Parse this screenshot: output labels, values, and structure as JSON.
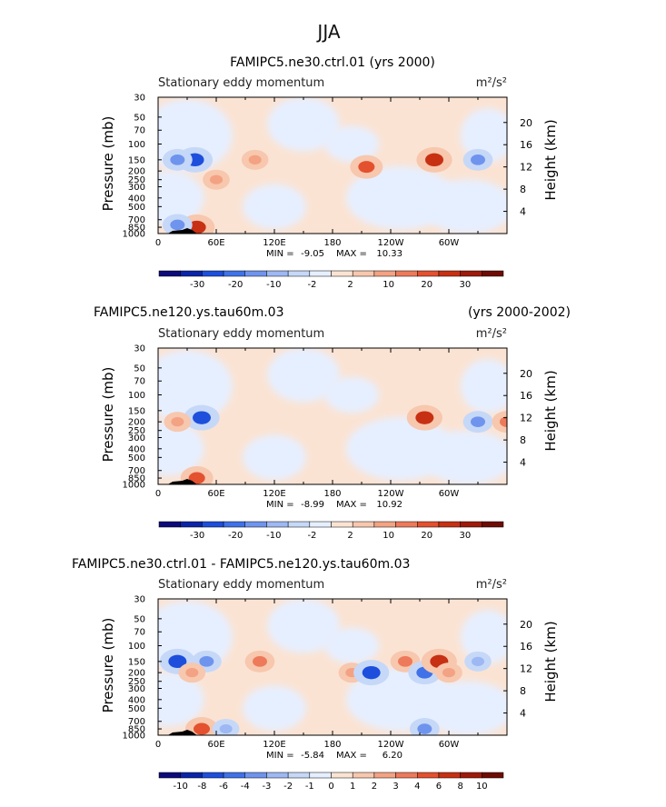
{
  "page_title": "JJA",
  "chart_data": [
    {
      "type": "heatmap",
      "title": "FAMIPC5.ne30.ctrl.01 (yrs 2000)",
      "subtitle_right": "",
      "left_label": "Stationary eddy momentum",
      "units": "m²/s²",
      "ylabel": "Pressure (mb)",
      "y2label": "Height (km)",
      "x_tick_labels": [
        "0",
        "60E",
        "120E",
        "180",
        "120W",
        "60W"
      ],
      "y_tick_labels": [
        "30",
        "50",
        "70",
        "100",
        "150",
        "200",
        "250",
        "300",
        "400",
        "500",
        "700",
        "850",
        "1000"
      ],
      "y2_tick_labels": [
        "20",
        "16",
        "12",
        "8",
        "4"
      ],
      "min_label": "MIN =",
      "min_value": "-9.05",
      "max_label": "MAX =",
      "max_value": "10.33",
      "colorbar_labels": [
        "-30",
        "-20",
        "-10",
        "-2",
        "2",
        "10",
        "20",
        "30"
      ],
      "colorbar_colors": [
        "#0d0b7a",
        "#0a24a8",
        "#1d4fdc",
        "#3f72e8",
        "#6f94ee",
        "#9db8f3",
        "#c6d8f8",
        "#e6efff",
        "#fbe3d3",
        "#f7c7ae",
        "#f3a283",
        "#ed7a5a",
        "#e3512f",
        "#c73013",
        "#9e1a0a",
        "#6e0c04"
      ],
      "blobs": [
        {
          "lon": 38,
          "p": 150,
          "v": -6
        },
        {
          "lon": 20,
          "p": 150,
          "v": -4
        },
        {
          "lon": 100,
          "p": 150,
          "v": 3
        },
        {
          "lon": 215,
          "p": 180,
          "v": 5
        },
        {
          "lon": 285,
          "p": 150,
          "v": 6
        },
        {
          "lon": 330,
          "p": 150,
          "v": -4
        },
        {
          "lon": 40,
          "p": 850,
          "v": 6
        },
        {
          "lon": 20,
          "p": 800,
          "v": -4
        },
        {
          "lon": 60,
          "p": 250,
          "v": 3
        }
      ]
    },
    {
      "type": "heatmap",
      "title": "FAMIPC5.ne120.ys.tau60m.03",
      "subtitle_right": "(yrs 2000-2002)",
      "left_label": "Stationary eddy momentum",
      "units": "m²/s²",
      "ylabel": "Pressure (mb)",
      "y2label": "Height (km)",
      "x_tick_labels": [
        "0",
        "60E",
        "120E",
        "180",
        "120W",
        "60W"
      ],
      "y_tick_labels": [
        "30",
        "50",
        "70",
        "100",
        "150",
        "200",
        "250",
        "300",
        "400",
        "500",
        "700",
        "850",
        "1000"
      ],
      "y2_tick_labels": [
        "20",
        "16",
        "12",
        "8",
        "4"
      ],
      "min_label": "MIN =",
      "min_value": "-8.99",
      "max_label": "MAX =",
      "max_value": "10.92",
      "colorbar_labels": [
        "-30",
        "-20",
        "-10",
        "-2",
        "2",
        "10",
        "20",
        "30"
      ],
      "colorbar_colors": [
        "#0d0b7a",
        "#0a24a8",
        "#1d4fdc",
        "#3f72e8",
        "#6f94ee",
        "#9db8f3",
        "#c6d8f8",
        "#e6efff",
        "#fbe3d3",
        "#f7c7ae",
        "#f3a283",
        "#ed7a5a",
        "#e3512f",
        "#c73013",
        "#9e1a0a",
        "#6e0c04"
      ],
      "blobs": [
        {
          "lon": 45,
          "p": 180,
          "v": -6
        },
        {
          "lon": 20,
          "p": 200,
          "v": 3
        },
        {
          "lon": 275,
          "p": 180,
          "v": 6
        },
        {
          "lon": 330,
          "p": 200,
          "v": -4
        },
        {
          "lon": 360,
          "p": 200,
          "v": 4
        },
        {
          "lon": 40,
          "p": 850,
          "v": 5
        }
      ]
    },
    {
      "type": "heatmap",
      "title": "FAMIPC5.ne30.ctrl.01 - FAMIPC5.ne120.ys.tau60m.03",
      "subtitle_right": "",
      "left_label": "Stationary eddy momentum",
      "units": "m²/s²",
      "ylabel": "Pressure (mb)",
      "y2label": "Height (km)",
      "x_tick_labels": [
        "0",
        "60E",
        "120E",
        "180",
        "120W",
        "60W"
      ],
      "y_tick_labels": [
        "30",
        "50",
        "70",
        "100",
        "150",
        "200",
        "250",
        "300",
        "400",
        "500",
        "700",
        "850",
        "1000"
      ],
      "y2_tick_labels": [
        "20",
        "16",
        "12",
        "8",
        "4"
      ],
      "min_label": "MIN =",
      "min_value": "-5.84",
      "max_label": "MAX =",
      "max_value": "6.20",
      "colorbar_labels": [
        "-10",
        "-8",
        "-6",
        "-4",
        "-3",
        "-2",
        "-1",
        "0",
        "1",
        "2",
        "3",
        "4",
        "6",
        "8",
        "10"
      ],
      "colorbar_colors": [
        "#0d0b7a",
        "#0a24a8",
        "#1d4fdc",
        "#3f72e8",
        "#6f94ee",
        "#9db8f3",
        "#c6d8f8",
        "#e6efff",
        "#fbe3d3",
        "#f7c7ae",
        "#f3a283",
        "#ed7a5a",
        "#e3512f",
        "#c73013",
        "#9e1a0a",
        "#6e0c04"
      ],
      "blobs": [
        {
          "lon": 20,
          "p": 150,
          "v": -6
        },
        {
          "lon": 50,
          "p": 150,
          "v": -4
        },
        {
          "lon": 35,
          "p": 200,
          "v": 3
        },
        {
          "lon": 105,
          "p": 150,
          "v": 4
        },
        {
          "lon": 200,
          "p": 200,
          "v": 3
        },
        {
          "lon": 220,
          "p": 200,
          "v": -6
        },
        {
          "lon": 255,
          "p": 150,
          "v": 4
        },
        {
          "lon": 275,
          "p": 200,
          "v": -5
        },
        {
          "lon": 290,
          "p": 150,
          "v": 6
        },
        {
          "lon": 300,
          "p": 200,
          "v": 3
        },
        {
          "lon": 330,
          "p": 150,
          "v": -3
        },
        {
          "lon": 45,
          "p": 850,
          "v": 5
        },
        {
          "lon": 70,
          "p": 850,
          "v": -3
        },
        {
          "lon": 275,
          "p": 850,
          "v": -4
        }
      ]
    }
  ]
}
